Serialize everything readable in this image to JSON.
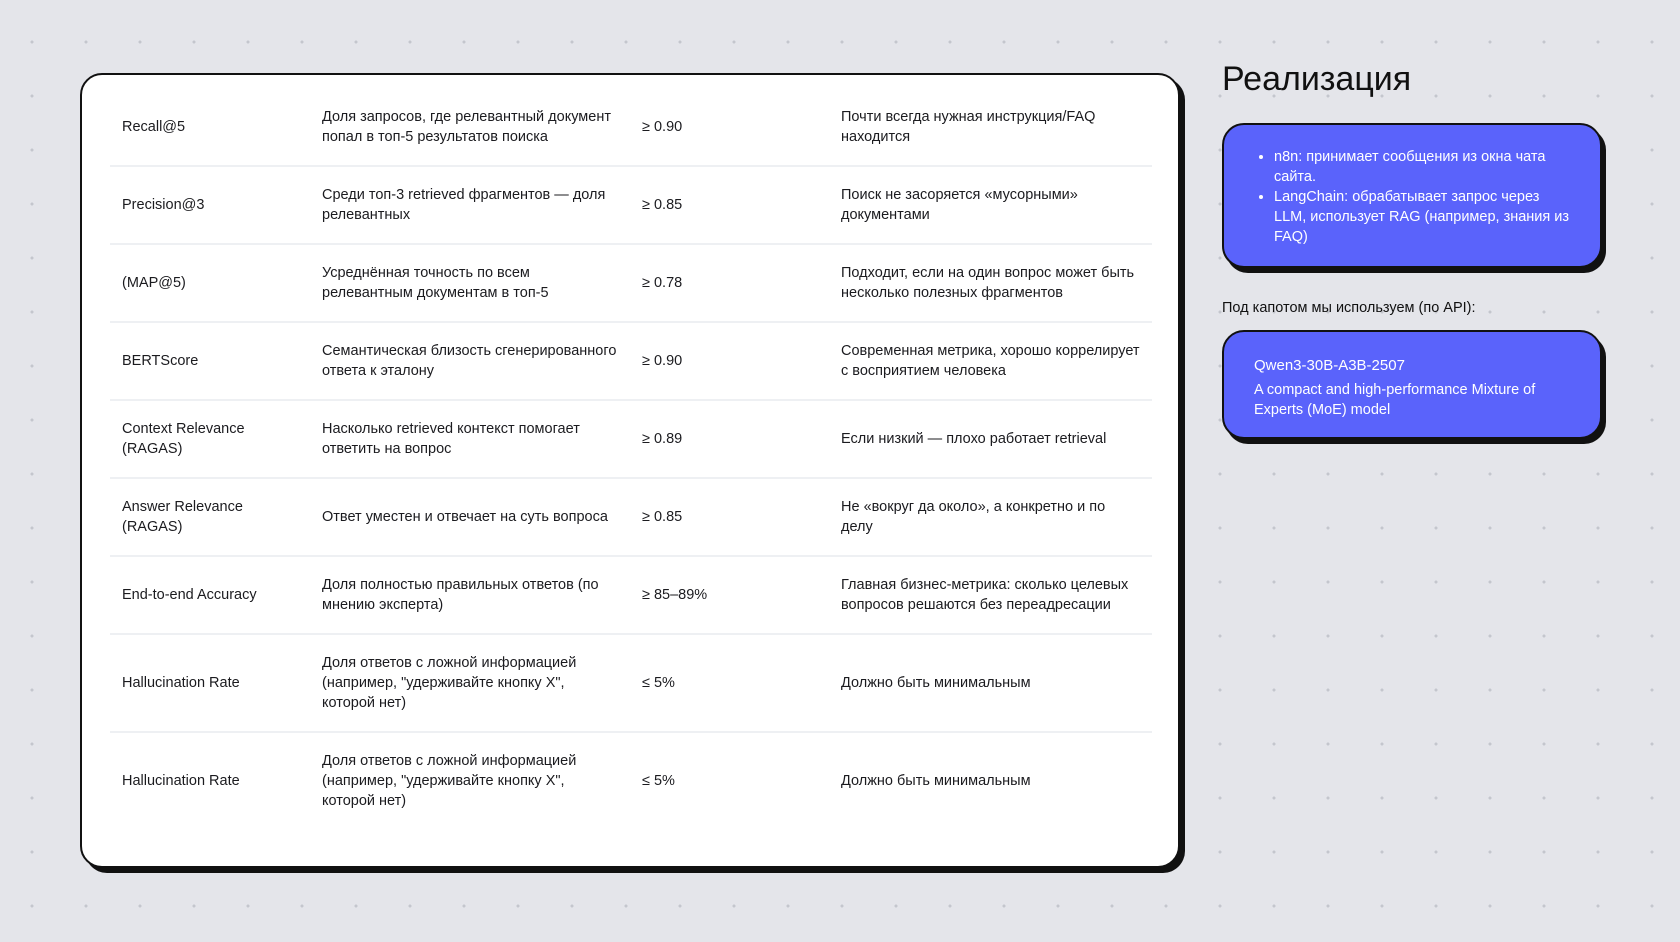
{
  "table": {
    "rows": [
      {
        "metric": "Recall@5",
        "description": "Доля запросов, где релевантный документ попал в топ-5 результатов поиска",
        "target": "≥ 0.90",
        "comment": "Почти всегда нужная инструкция/FAQ находится"
      },
      {
        "metric": "Precision@3",
        "description": "Среди топ-3 retrieved фрагментов — доля релевантных",
        "target": "≥ 0.85",
        "comment": "Поиск не засоряется «мусорными» документами"
      },
      {
        "metric": "(MAP@5)",
        "description": "Усреднённая точность по всем релевантным документам в топ-5",
        "target": "≥ 0.78",
        "comment": "Подходит, если на один вопрос может быть несколько полезных фрагментов"
      },
      {
        "metric": "BERTScore",
        "description": "Семантическая близость сгенерированного ответа к эталону",
        "target": "≥ 0.90",
        "comment": "Современная метрика, хорошо коррелирует с восприятием человека"
      },
      {
        "metric": "Context Relevance (RAGAS)",
        "description": "Насколько retrieved контекст помогает ответить на вопрос",
        "target": "≥ 0.89",
        "comment": "Если низкий — плохо работает retrieval"
      },
      {
        "metric": "Answer Relevance (RAGAS)",
        "description": "Ответ уместен и отвечает на суть вопроса",
        "target": "≥ 0.85",
        "comment": "Не «вокруг да около», а конкретно и по делу"
      },
      {
        "metric": "End-to-end Accuracy",
        "description": "Доля полностью правильных ответов (по мнению эксперта)",
        "target": "≥ 85–89%",
        "comment": "Главная бизнес-метрика: сколько целевых вопросов решаются без переадресации"
      },
      {
        "metric": "Hallucination Rate",
        "description": "Доля ответов с ложной информацией (например, \"удерживайте кнопку X\", которой нет)",
        "target": "≤ 5%",
        "comment": "Должно быть минимальным"
      },
      {
        "metric": "Hallucination Rate",
        "description": "Доля ответов с ложной информацией (например, \"удерживайте кнопку X\", которой нет)",
        "target": "≤ 5%",
        "comment": "Должно быть минимальным"
      }
    ]
  },
  "side": {
    "title": "Реализация",
    "bullets": [
      "n8n: принимает сообщения из окна чата сайта.",
      "LangChain: обрабатывает запрос через LLM, использует RAG (например, знания из FAQ)"
    ],
    "api_label": "Под капотом мы используем (по API):",
    "model_name": "Qwen3-30B-A3B-2507",
    "model_description": "A compact and high-performance Mixture of Experts (MoE) model"
  },
  "colors": {
    "accent": "#5a63fb",
    "background": "#e4e5ea"
  }
}
